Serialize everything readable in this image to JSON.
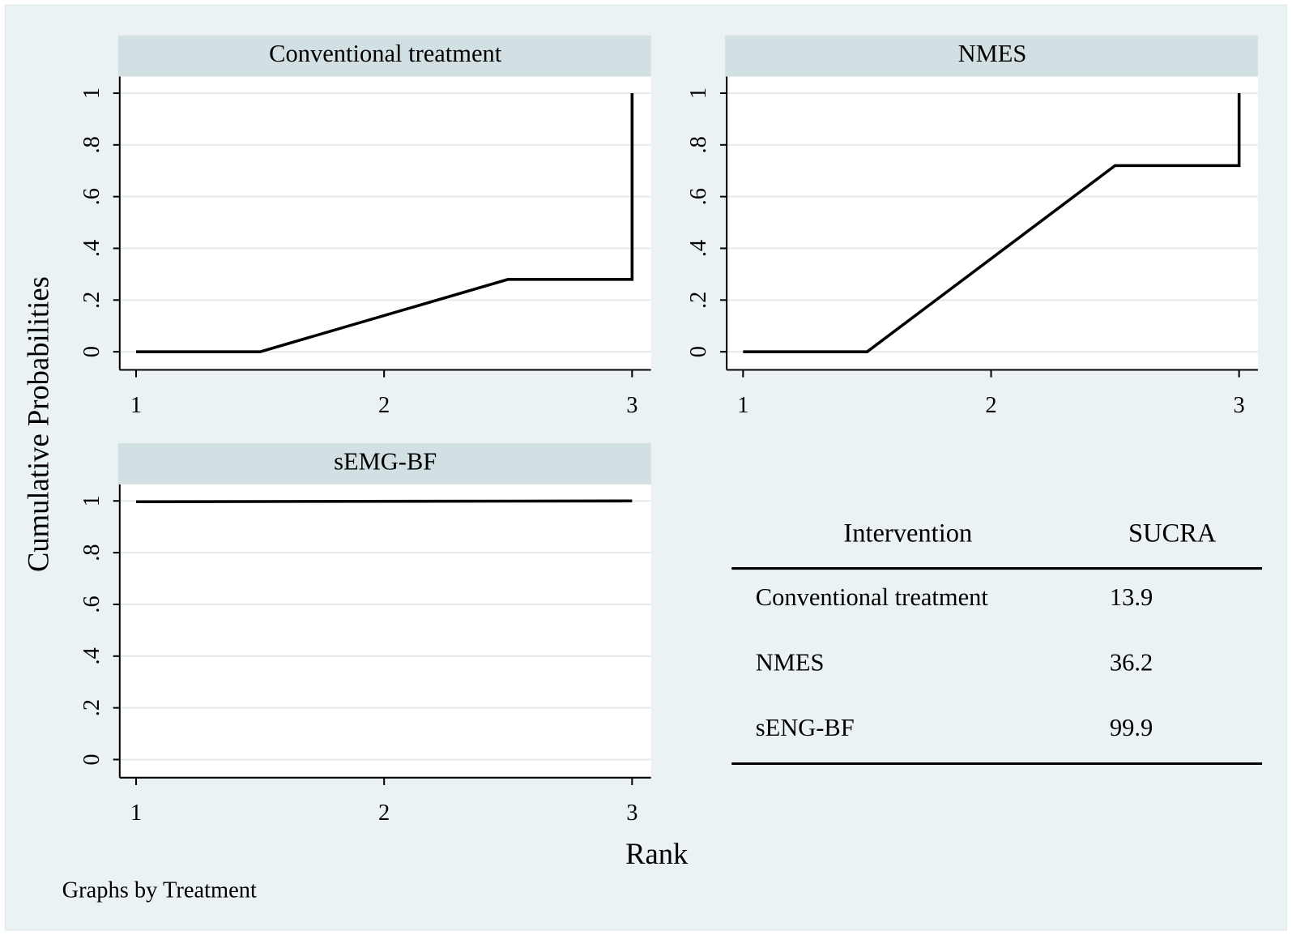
{
  "y_label": "Cumulative Probabilities",
  "x_label": "Rank",
  "note": "Graphs by Treatment",
  "chart_data": [
    {
      "type": "line",
      "title": "Conventional treatment",
      "x": [
        1,
        1.5,
        2.5,
        3,
        3
      ],
      "values": [
        0,
        0,
        0.28,
        0.28,
        1
      ],
      "color": "#000000",
      "xlim": [
        0.934,
        3.076
      ],
      "ylim": [
        -0.07,
        1.064
      ],
      "xticks": [
        1,
        2,
        3
      ],
      "yticks": [
        0,
        {
          "value": 0.2,
          "label": ".2"
        },
        {
          "value": 0.4,
          "label": ".4"
        },
        {
          "value": 0.6,
          "label": ".6"
        },
        {
          "value": 0.8,
          "label": ".8"
        },
        1
      ],
      "grid": true
    },
    {
      "type": "line",
      "title": "NMES",
      "x": [
        1,
        1.5,
        2.5,
        3,
        3
      ],
      "values": [
        0,
        0,
        0.72,
        0.72,
        1
      ],
      "color": "#000000",
      "xlim": [
        0.934,
        3.076
      ],
      "ylim": [
        -0.07,
        1.064
      ],
      "xticks": [
        1,
        2,
        3
      ],
      "yticks": [
        0,
        {
          "value": 0.2,
          "label": ".2"
        },
        {
          "value": 0.4,
          "label": ".4"
        },
        {
          "value": 0.6,
          "label": ".6"
        },
        {
          "value": 0.8,
          "label": ".8"
        },
        1
      ],
      "grid": true
    },
    {
      "type": "line",
      "title": "sEMG-BF",
      "x": [
        1,
        3
      ],
      "values": [
        0.997,
        1
      ],
      "color": "#000000",
      "xlim": [
        0.934,
        3.076
      ],
      "ylim": [
        -0.07,
        1.064
      ],
      "xticks": [
        1,
        2,
        3
      ],
      "yticks": [
        0,
        {
          "value": 0.2,
          "label": ".2"
        },
        {
          "value": 0.4,
          "label": ".4"
        },
        {
          "value": 0.6,
          "label": ".6"
        },
        {
          "value": 0.8,
          "label": ".8"
        },
        1
      ],
      "grid": true
    }
  ],
  "table": {
    "columns": [
      "Intervention",
      "SUCRA"
    ],
    "rows": [
      [
        "Conventional treatment",
        13.9
      ],
      [
        "NMES",
        36.2
      ],
      [
        "sENG-BF",
        99.9
      ]
    ]
  }
}
